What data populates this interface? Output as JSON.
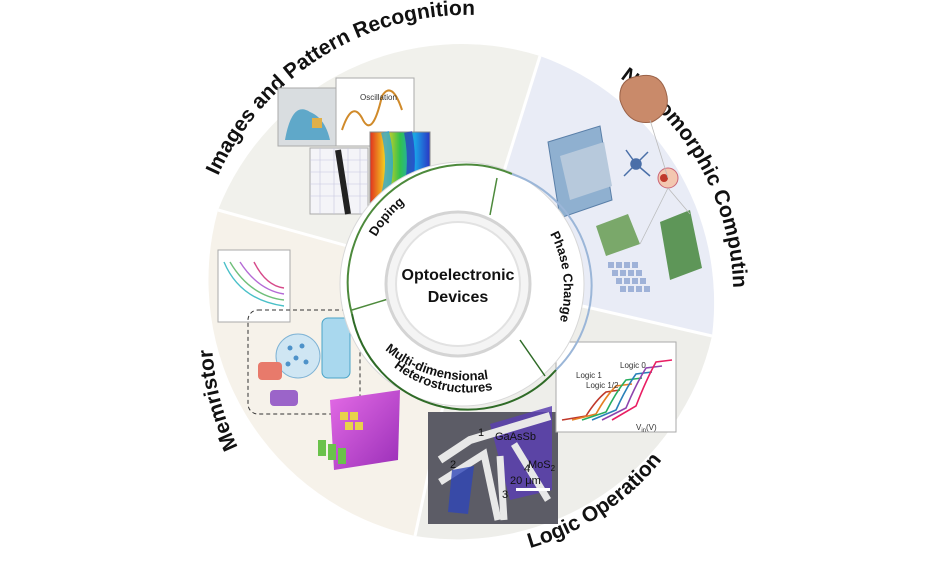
{
  "center": {
    "line1": "Optoelectronic",
    "line2": "Devices"
  },
  "inner_ring": {
    "doping": "Doping",
    "phase_change": "Phase Change",
    "hetero_line1": "Multi-dimensional",
    "hetero_line2": "Heterostructures"
  },
  "segments": {
    "images": "Images and Pattern Recognition",
    "neuromorphic": "Neuromorphic Computing",
    "logic": "Logic Operation",
    "memristor": "Memristor"
  },
  "logic_inset": {
    "material_a": "GaAsSb",
    "material_b": "MoS",
    "material_b_sub": "2",
    "scale_bar": "20 μm",
    "electrode_1": "1",
    "electrode_2": "2",
    "electrode_3": "3",
    "electrode_4": "4",
    "logic_1": "Logic 1",
    "logic_half": "Logic 1/2",
    "logic_0": "Logic 0",
    "axis_x": "V",
    "axis_x_sub": "in",
    "axis_x_unit": "(V)"
  },
  "colors": {
    "images_bg": "#f1f1ec",
    "neuromorphic_bg": "#e9ecf6",
    "logic_bg": "#eeeeea",
    "memristor_bg": "#f6f2ea",
    "ring_green": "#4d8a3c",
    "ring_blue": "#9bb6d8"
  },
  "icons": {
    "brain": "brain-icon",
    "neuron": "neuron-icon",
    "eye": "eye-icon",
    "finger": "finger-sample-icon"
  }
}
